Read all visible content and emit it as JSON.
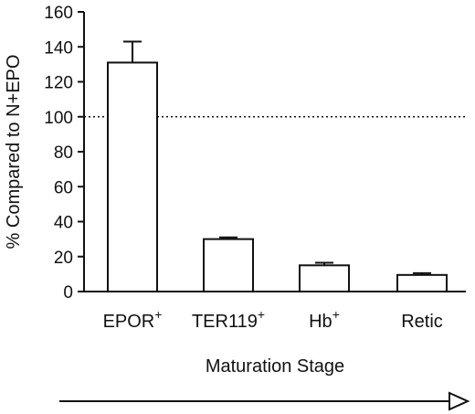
{
  "chart_data": {
    "type": "bar",
    "categories": [
      "EPOR",
      "TER119",
      "Hb",
      "Retic"
    ],
    "category_superscripts": [
      "+",
      "+",
      "+",
      ""
    ],
    "values": [
      131,
      30,
      15,
      9.5
    ],
    "errors": [
      12,
      1,
      1.5,
      1
    ],
    "ylabel": "% Compared to N+EPO",
    "xlabel": "Maturation Stage",
    "ylim": [
      0,
      160
    ],
    "yticks": [
      0,
      20,
      40,
      60,
      80,
      100,
      120,
      140,
      160
    ],
    "reference_line": 100,
    "grid": false,
    "legend": "none",
    "colors": {
      "bar_fill": "#ffffff",
      "stroke": "#111111"
    }
  }
}
